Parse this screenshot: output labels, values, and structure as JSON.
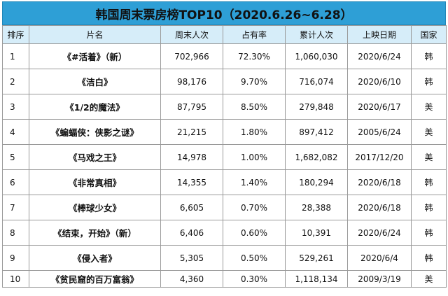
{
  "title": "韩国周末票房榜TOP10（2020.6.26~6.28）",
  "headers": [
    "排序",
    "片名",
    "周末人次",
    "占有率",
    "累计人次",
    "上映日期",
    "国家"
  ],
  "rows": [
    {
      "rank": "1",
      "name": "《#活着》（新）",
      "weekend": "702,966",
      "share": "72.30%",
      "total": "1,060,030",
      "date": "2020/6/24",
      "country": "韩"
    },
    {
      "rank": "2",
      "name": "《洁白》",
      "weekend": "98,176",
      "share": "9.70%",
      "total": "716,074",
      "date": "2020/6/10",
      "country": "韩"
    },
    {
      "rank": "3",
      "name": "《1/2的魔法》",
      "weekend": "87,795",
      "share": "8.50%",
      "total": "279,848",
      "date": "2020/6/17",
      "country": "美"
    },
    {
      "rank": "4",
      "name": "《蝙蝠侠：侠影之谜》",
      "weekend": "21,215",
      "share": "1.80%",
      "total": "897,412",
      "date": "2005/6/24",
      "country": "美"
    },
    {
      "rank": "5",
      "name": "《马戏之王》",
      "weekend": "14,978",
      "share": "1.00%",
      "total": "1,682,082",
      "date": "2017/12/20",
      "country": "美"
    },
    {
      "rank": "6",
      "name": "《非常真相》",
      "weekend": "14,355",
      "share": "1.40%",
      "total": "180,294",
      "date": "2020/6/18",
      "country": "韩"
    },
    {
      "rank": "7",
      "name": "《棒球少女》",
      "weekend": "6,605",
      "share": "0.70%",
      "total": "28,388",
      "date": "2020/6/18",
      "country": "韩"
    },
    {
      "rank": "8",
      "name": "《结束，开始》（新）",
      "weekend": "6,406",
      "share": "0.60%",
      "total": "10,391",
      "date": "2020/6/24",
      "country": "韩"
    },
    {
      "rank": "9",
      "name": "《侵入者》",
      "weekend": "5,305",
      "share": "0.50%",
      "total": "529,261",
      "date": "2020/6/4",
      "country": "韩"
    },
    {
      "rank": "10",
      "name": "《贫民窟的百万富翁》",
      "weekend": "4,360",
      "share": "0.30%",
      "total": "1,118,134",
      "date": "2009/3/19",
      "country": "美"
    }
  ],
  "colors": {
    "title_bg": "#2e9fd6",
    "header_bg": "#d6edf9",
    "border": "#9a9a9a"
  }
}
